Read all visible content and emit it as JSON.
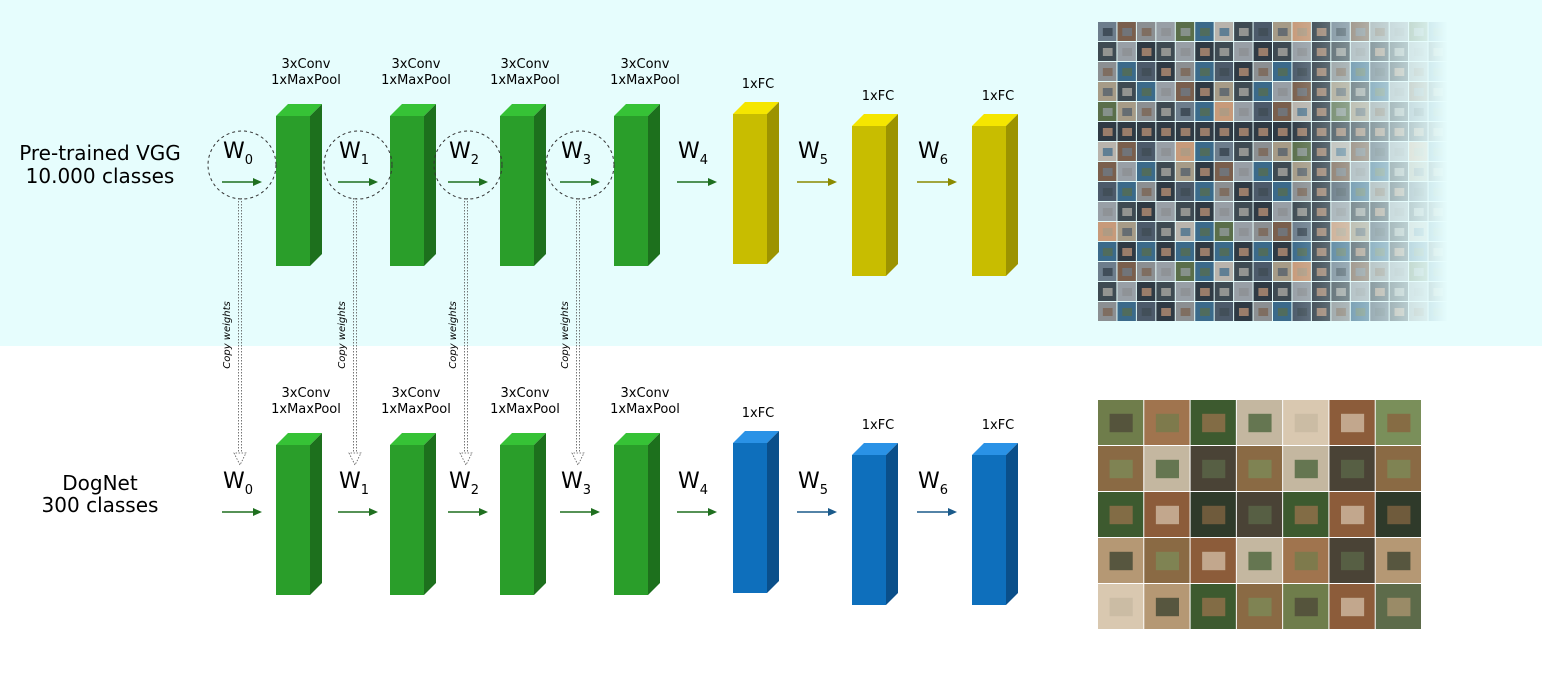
{
  "networks": [
    {
      "name_line1": "Pre-trained VGG",
      "name_line2": "10.000 classes",
      "fc_color": {
        "front": "#c8bd00",
        "top": "#f5e600",
        "side": "#9c9300"
      },
      "fc_arrow_color": "#8a8a00",
      "image_grid": "imagenet-thumbnail-grid"
    },
    {
      "name_line1": "DogNet",
      "name_line2": "300 classes",
      "fc_color": {
        "front": "#0e6fbc",
        "top": "#2a92e6",
        "side": "#0a4f8a"
      },
      "fc_arrow_color": "#1a5a8a",
      "image_grid": "dog-thumbnail-grid"
    }
  ],
  "conv_color": {
    "front": "#2a9e2a",
    "top": "#36c236",
    "side": "#1d701d"
  },
  "conv_arrow_color": "#1f6f1f",
  "blocks": [
    {
      "line1": "3xConv",
      "line2": "1xMaxPool",
      "kind": "conv"
    },
    {
      "line1": "3xConv",
      "line2": "1xMaxPool",
      "kind": "conv"
    },
    {
      "line1": "3xConv",
      "line2": "1xMaxPool",
      "kind": "conv"
    },
    {
      "line1": "3xConv",
      "line2": "1xMaxPool",
      "kind": "conv"
    },
    {
      "line1": "1xFC",
      "line2": "",
      "kind": "fc"
    },
    {
      "line1": "1xFC",
      "line2": "",
      "kind": "fc"
    },
    {
      "line1": "1xFC",
      "line2": "",
      "kind": "fc"
    }
  ],
  "weights": [
    {
      "base": "W",
      "sub": "0"
    },
    {
      "base": "W",
      "sub": "1"
    },
    {
      "base": "W",
      "sub": "2"
    },
    {
      "base": "W",
      "sub": "3"
    },
    {
      "base": "W",
      "sub": "4"
    },
    {
      "base": "W",
      "sub": "5"
    },
    {
      "base": "W",
      "sub": "6"
    }
  ],
  "copy_label": "Copy weights",
  "top_background": "#e6fdfd"
}
